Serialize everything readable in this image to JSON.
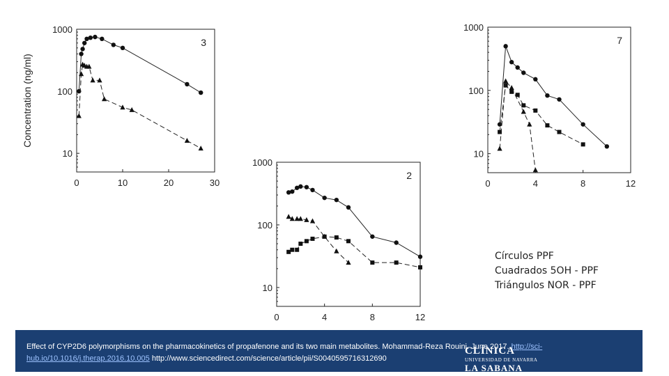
{
  "chart_data": [
    {
      "type": "line",
      "panel_label": "3",
      "ylabel": "Concentration (ng/ml)",
      "yscale": "log",
      "ylim": [
        5,
        1000
      ],
      "xlim": [
        0,
        30
      ],
      "xticks": [
        0,
        10,
        20,
        30
      ],
      "yticks": [
        10,
        100,
        1000
      ],
      "series": [
        {
          "name": "PPF",
          "marker": "circle",
          "dash": "solid",
          "x": [
            0.5,
            1,
            1.3,
            1.7,
            2.2,
            3,
            4,
            5.5,
            8,
            10,
            24,
            27
          ],
          "y": [
            100,
            400,
            480,
            600,
            700,
            730,
            750,
            700,
            560,
            500,
            130,
            95
          ]
        },
        {
          "name": "NOR-PPF",
          "marker": "triangle",
          "dash": "dashed",
          "x": [
            0.5,
            1,
            1.3,
            1.7,
            2.2,
            2.7,
            3.5,
            5,
            6,
            10,
            12,
            24,
            27
          ],
          "y": [
            40,
            190,
            270,
            260,
            250,
            250,
            150,
            150,
            75,
            55,
            50,
            16,
            12
          ]
        }
      ]
    },
    {
      "type": "line",
      "panel_label": "2",
      "ylabel": "",
      "yscale": "log",
      "ylim": [
        5,
        1000
      ],
      "xlim": [
        0,
        12
      ],
      "xticks": [
        0,
        4,
        8,
        12
      ],
      "yticks": [
        10,
        100,
        1000
      ],
      "series": [
        {
          "name": "PPF",
          "marker": "circle",
          "dash": "solid",
          "x": [
            1,
            1.3,
            1.7,
            2,
            2.5,
            3,
            4,
            5,
            6,
            8,
            10,
            12
          ],
          "y": [
            330,
            340,
            390,
            410,
            400,
            360,
            270,
            250,
            190,
            65,
            52,
            31
          ]
        },
        {
          "name": "5OH-PPF",
          "marker": "square",
          "dash": "dashed",
          "x": [
            1,
            1.3,
            1.7,
            2,
            2.5,
            3,
            4,
            5,
            6,
            8,
            10,
            12
          ],
          "y": [
            37,
            40,
            40,
            50,
            55,
            60,
            65,
            63,
            55,
            25,
            25,
            21
          ]
        },
        {
          "name": "NOR-PPF",
          "marker": "triangle",
          "dash": "dashed",
          "x": [
            1,
            1.3,
            1.7,
            2,
            2.5,
            3,
            4,
            5,
            6
          ],
          "y": [
            135,
            125,
            125,
            125,
            120,
            115,
            65,
            38,
            25
          ]
        }
      ]
    },
    {
      "type": "line",
      "panel_label": "7",
      "ylabel": "",
      "yscale": "log",
      "ylim": [
        5,
        1000
      ],
      "xlim": [
        0,
        12
      ],
      "xticks": [
        0,
        4,
        8,
        12
      ],
      "yticks": [
        10,
        100,
        1000
      ],
      "series": [
        {
          "name": "PPF",
          "marker": "circle",
          "dash": "solid",
          "x": [
            1,
            1.5,
            2,
            2.5,
            3,
            4,
            5,
            6,
            8,
            10
          ],
          "y": [
            29,
            500,
            280,
            230,
            190,
            150,
            83,
            72,
            29,
            13
          ]
        },
        {
          "name": "5OH-PPF",
          "marker": "square",
          "dash": "dashed",
          "x": [
            1,
            1.5,
            2,
            2.5,
            3,
            4,
            5,
            6,
            8
          ],
          "y": [
            22,
            120,
            95,
            85,
            58,
            48,
            28,
            22,
            14
          ]
        },
        {
          "name": "NOR-PPF",
          "marker": "triangle",
          "dash": "dashed",
          "x": [
            1,
            1.5,
            2,
            3,
            3.5,
            4
          ],
          "y": [
            12,
            140,
            110,
            46,
            29,
            5.5
          ]
        }
      ]
    }
  ],
  "legend": {
    "circles": "Círculos PPF",
    "squares": "Cuadrados 5OH - PPF",
    "triangles": "Triángulos NOR - PPF"
  },
  "citation": {
    "text_before": "Effect of CYP2D6 polymorphisms on the pharmacokinetics of propafenone and its two main metabolites. Mohammad-Reza Rouini. June 2017.",
    "link": "http://sci-hub.io/10.1016/j.therap.2016.10.005",
    "text_after": "http://www.sciencedirect.com/science/article/pii/S0040595716312690"
  },
  "logo": {
    "line1": "CLÍNICA",
    "line2": "UNIVERSIDAD DE NAVARRA",
    "line3": "LA SABANA"
  },
  "colors": {
    "footer_bg": "#1b3f72",
    "ink": "#222222"
  }
}
